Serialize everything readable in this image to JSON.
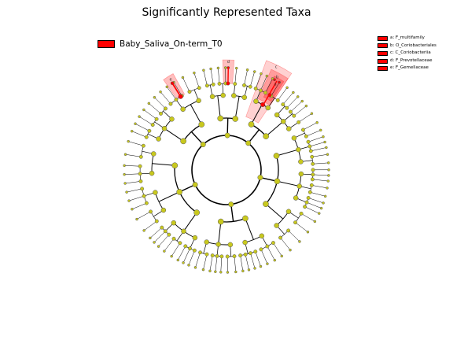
{
  "title": "Significantly Represented Taxa",
  "group_legend": {
    "label": "Baby_Saliva_On-term_T0",
    "color": "#ff0000"
  },
  "clade_legend": [
    {
      "key": "a",
      "text": "a: F_multifamily",
      "color": "#ff0000"
    },
    {
      "key": "b",
      "text": "b: O_Coriobacteriales",
      "color": "#ff0000"
    },
    {
      "key": "c",
      "text": "c: C_Coriobacteriia",
      "color": "#ff0000"
    },
    {
      "key": "d",
      "text": "d: F_Prevotellaceae",
      "color": "#ff0000"
    },
    {
      "key": "e",
      "text": "e: F_Gemellaceae",
      "color": "#ff0000"
    }
  ],
  "colors": {
    "node": "#c8c81e",
    "node_edge": "#555555",
    "highlight": "#ff0000"
  }
}
